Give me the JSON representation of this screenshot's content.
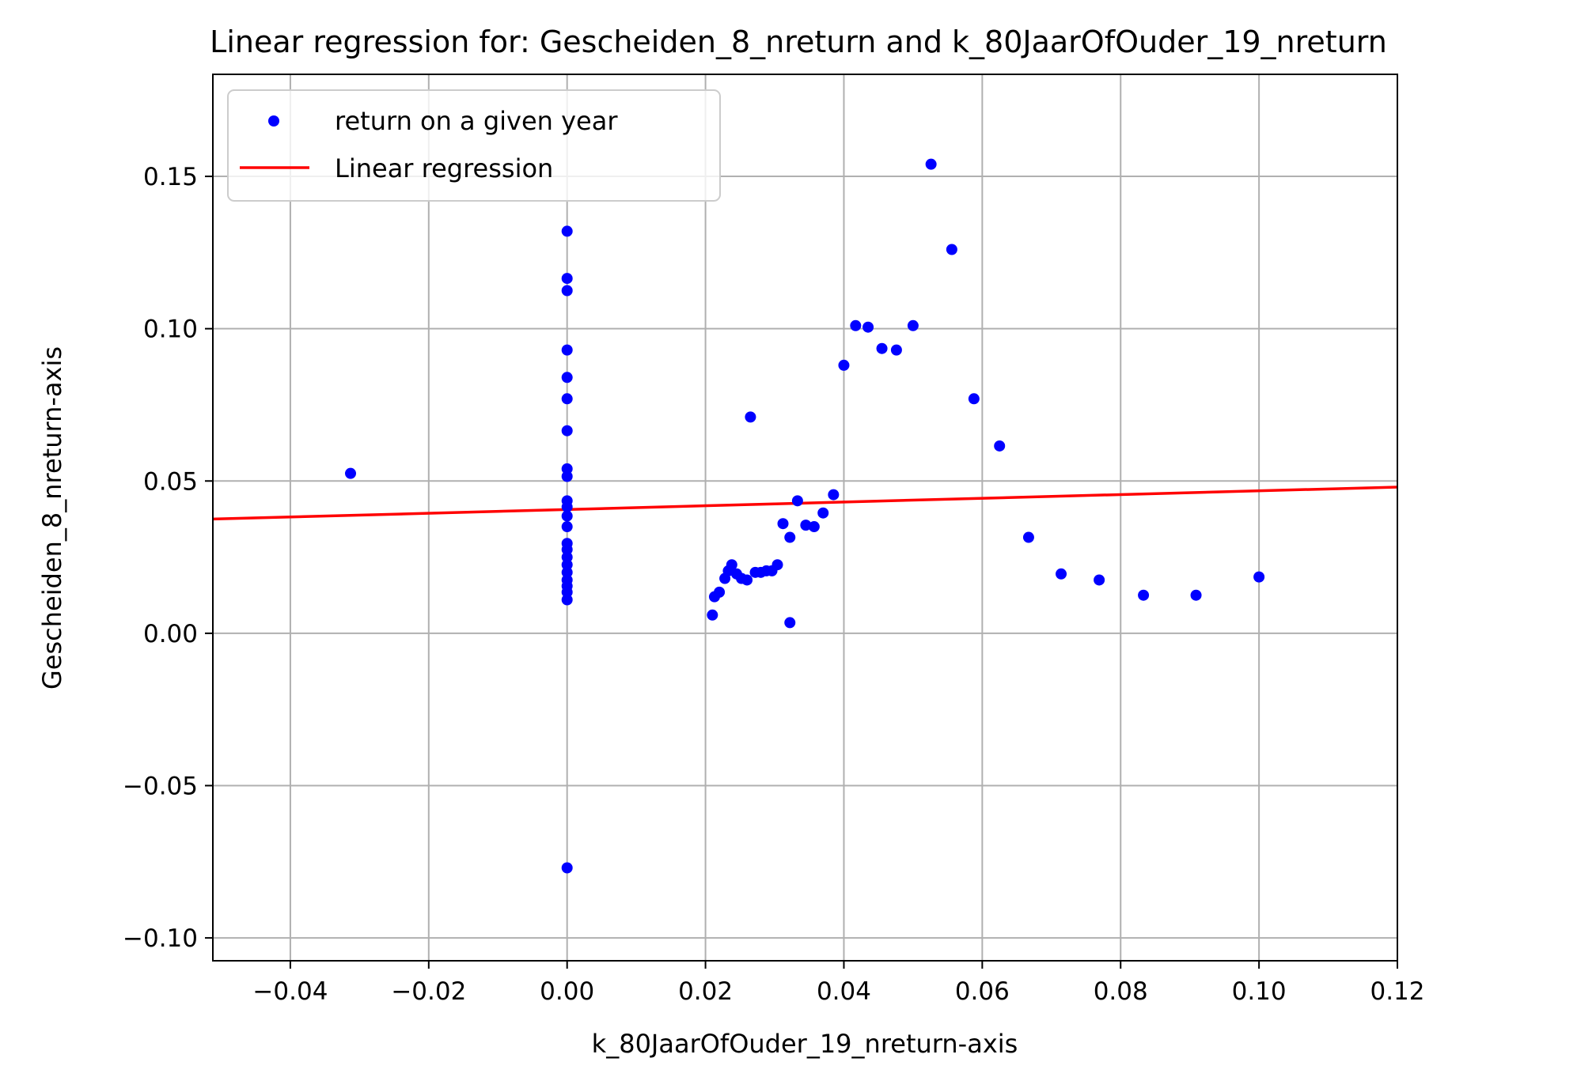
{
  "chart_data": {
    "type": "scatter",
    "title": "Linear regression for: Gescheiden_8_nreturn and k_80JaarOfOuder_19_nreturn",
    "xlabel": "k_80JaarOfOuder_19_nreturn-axis",
    "ylabel": "Gescheiden_8_nreturn-axis",
    "xlim": [
      -0.0512,
      0.12
    ],
    "ylim": [
      -0.1075,
      0.1835
    ],
    "x_ticks": [
      -0.04,
      -0.02,
      0.0,
      0.02,
      0.04,
      0.06,
      0.08,
      0.1,
      0.12
    ],
    "x_tick_labels": [
      "−0.04",
      "−0.02",
      "0.00",
      "0.02",
      "0.04",
      "0.06",
      "0.08",
      "0.10",
      "0.12"
    ],
    "y_ticks": [
      -0.1,
      -0.05,
      0.0,
      0.05,
      0.1,
      0.15
    ],
    "y_tick_labels": [
      "−0.10",
      "−0.05",
      "0.00",
      "0.05",
      "0.10",
      "0.15"
    ],
    "grid": true,
    "legend_position": "top-left",
    "series": [
      {
        "name": "return on a given year",
        "kind": "scatter",
        "color": "#0000ff",
        "points": [
          [
            -0.0313,
            0.0525
          ],
          [
            0.0,
            0.132
          ],
          [
            0.0,
            0.1165
          ],
          [
            0.0,
            0.1125
          ],
          [
            0.0,
            0.093
          ],
          [
            0.0,
            0.084
          ],
          [
            0.0,
            0.077
          ],
          [
            0.0,
            0.0665
          ],
          [
            0.0,
            0.054
          ],
          [
            0.0,
            0.0515
          ],
          [
            0.0,
            0.0435
          ],
          [
            0.0,
            0.0415
          ],
          [
            0.0,
            0.0385
          ],
          [
            0.0,
            0.035
          ],
          [
            0.0,
            0.0295
          ],
          [
            0.0,
            0.0275
          ],
          [
            0.0,
            0.025
          ],
          [
            0.0,
            0.0225
          ],
          [
            0.0,
            0.02
          ],
          [
            0.0,
            0.0175
          ],
          [
            0.0,
            0.0155
          ],
          [
            0.0,
            0.0135
          ],
          [
            0.0,
            0.011
          ],
          [
            0.0,
            -0.077
          ],
          [
            0.021,
            0.006
          ],
          [
            0.0213,
            0.012
          ],
          [
            0.022,
            0.0135
          ],
          [
            0.0228,
            0.018
          ],
          [
            0.0233,
            0.0205
          ],
          [
            0.0238,
            0.0225
          ],
          [
            0.0245,
            0.0195
          ],
          [
            0.0252,
            0.018
          ],
          [
            0.026,
            0.0175
          ],
          [
            0.0265,
            0.071
          ],
          [
            0.0272,
            0.02
          ],
          [
            0.028,
            0.02
          ],
          [
            0.0288,
            0.0205
          ],
          [
            0.0296,
            0.0205
          ],
          [
            0.0304,
            0.0225
          ],
          [
            0.0312,
            0.036
          ],
          [
            0.0322,
            0.0035
          ],
          [
            0.0322,
            0.0315
          ],
          [
            0.0333,
            0.0435
          ],
          [
            0.0345,
            0.0355
          ],
          [
            0.0357,
            0.035
          ],
          [
            0.037,
            0.0395
          ],
          [
            0.0385,
            0.0455
          ],
          [
            0.04,
            0.088
          ],
          [
            0.0417,
            0.101
          ],
          [
            0.0435,
            0.1005
          ],
          [
            0.0455,
            0.0935
          ],
          [
            0.0476,
            0.093
          ],
          [
            0.05,
            0.101
          ],
          [
            0.0526,
            0.154
          ],
          [
            0.0556,
            0.126
          ],
          [
            0.0588,
            0.077
          ],
          [
            0.0625,
            0.0615
          ],
          [
            0.0667,
            0.0315
          ],
          [
            0.0714,
            0.0195
          ],
          [
            0.0769,
            0.0175
          ],
          [
            0.0833,
            0.0125
          ],
          [
            0.0909,
            0.0125
          ],
          [
            0.1,
            0.0185
          ]
        ]
      },
      {
        "name": "Linear regression",
        "kind": "line",
        "color": "#ff0000",
        "points": [
          [
            -0.0512,
            0.0375
          ],
          [
            0.12,
            0.048
          ]
        ]
      }
    ]
  }
}
